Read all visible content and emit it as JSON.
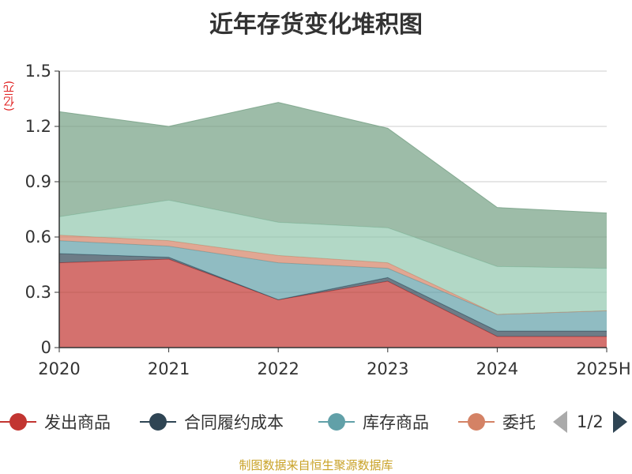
{
  "chart_data": {
    "type": "area",
    "stacked": true,
    "title": "近年存货变化堆积图",
    "unit_label": "(亿元)",
    "categories": [
      "2020",
      "2021",
      "2022",
      "2023",
      "2024",
      "2025H"
    ],
    "ylim": [
      0,
      1.5
    ],
    "yticks": [
      "0",
      "0.3",
      "0.6",
      "0.9",
      "1.2",
      "1.5"
    ],
    "grid": true,
    "series": [
      {
        "name": "发出商品",
        "color": "#c23531",
        "values": [
          0.46,
          0.48,
          0.26,
          0.36,
          0.06,
          0.06
        ]
      },
      {
        "name": "合同履约成本",
        "color": "#2f4554",
        "values": [
          0.05,
          0.01,
          0.0,
          0.02,
          0.03,
          0.03
        ]
      },
      {
        "name": "库存商品",
        "color": "#61a0a8",
        "values": [
          0.07,
          0.06,
          0.2,
          0.05,
          0.09,
          0.11
        ]
      },
      {
        "name": "委托加工物资",
        "color": "#d48265",
        "values": [
          0.03,
          0.03,
          0.04,
          0.03,
          0.0,
          0.0
        ]
      },
      {
        "name": "",
        "color": "#91c7ae",
        "values": [
          0.1,
          0.22,
          0.18,
          0.19,
          0.26,
          0.23
        ]
      },
      {
        "name": "",
        "color": "#749f83",
        "values": [
          0.57,
          0.4,
          0.65,
          0.54,
          0.32,
          0.3
        ]
      }
    ],
    "legend": {
      "visible_items": [
        "发出商品",
        "合同履约成本",
        "库存商品",
        "委托"
      ],
      "page": "1/2"
    },
    "source": "制图数据来自恒生聚源数据库"
  }
}
